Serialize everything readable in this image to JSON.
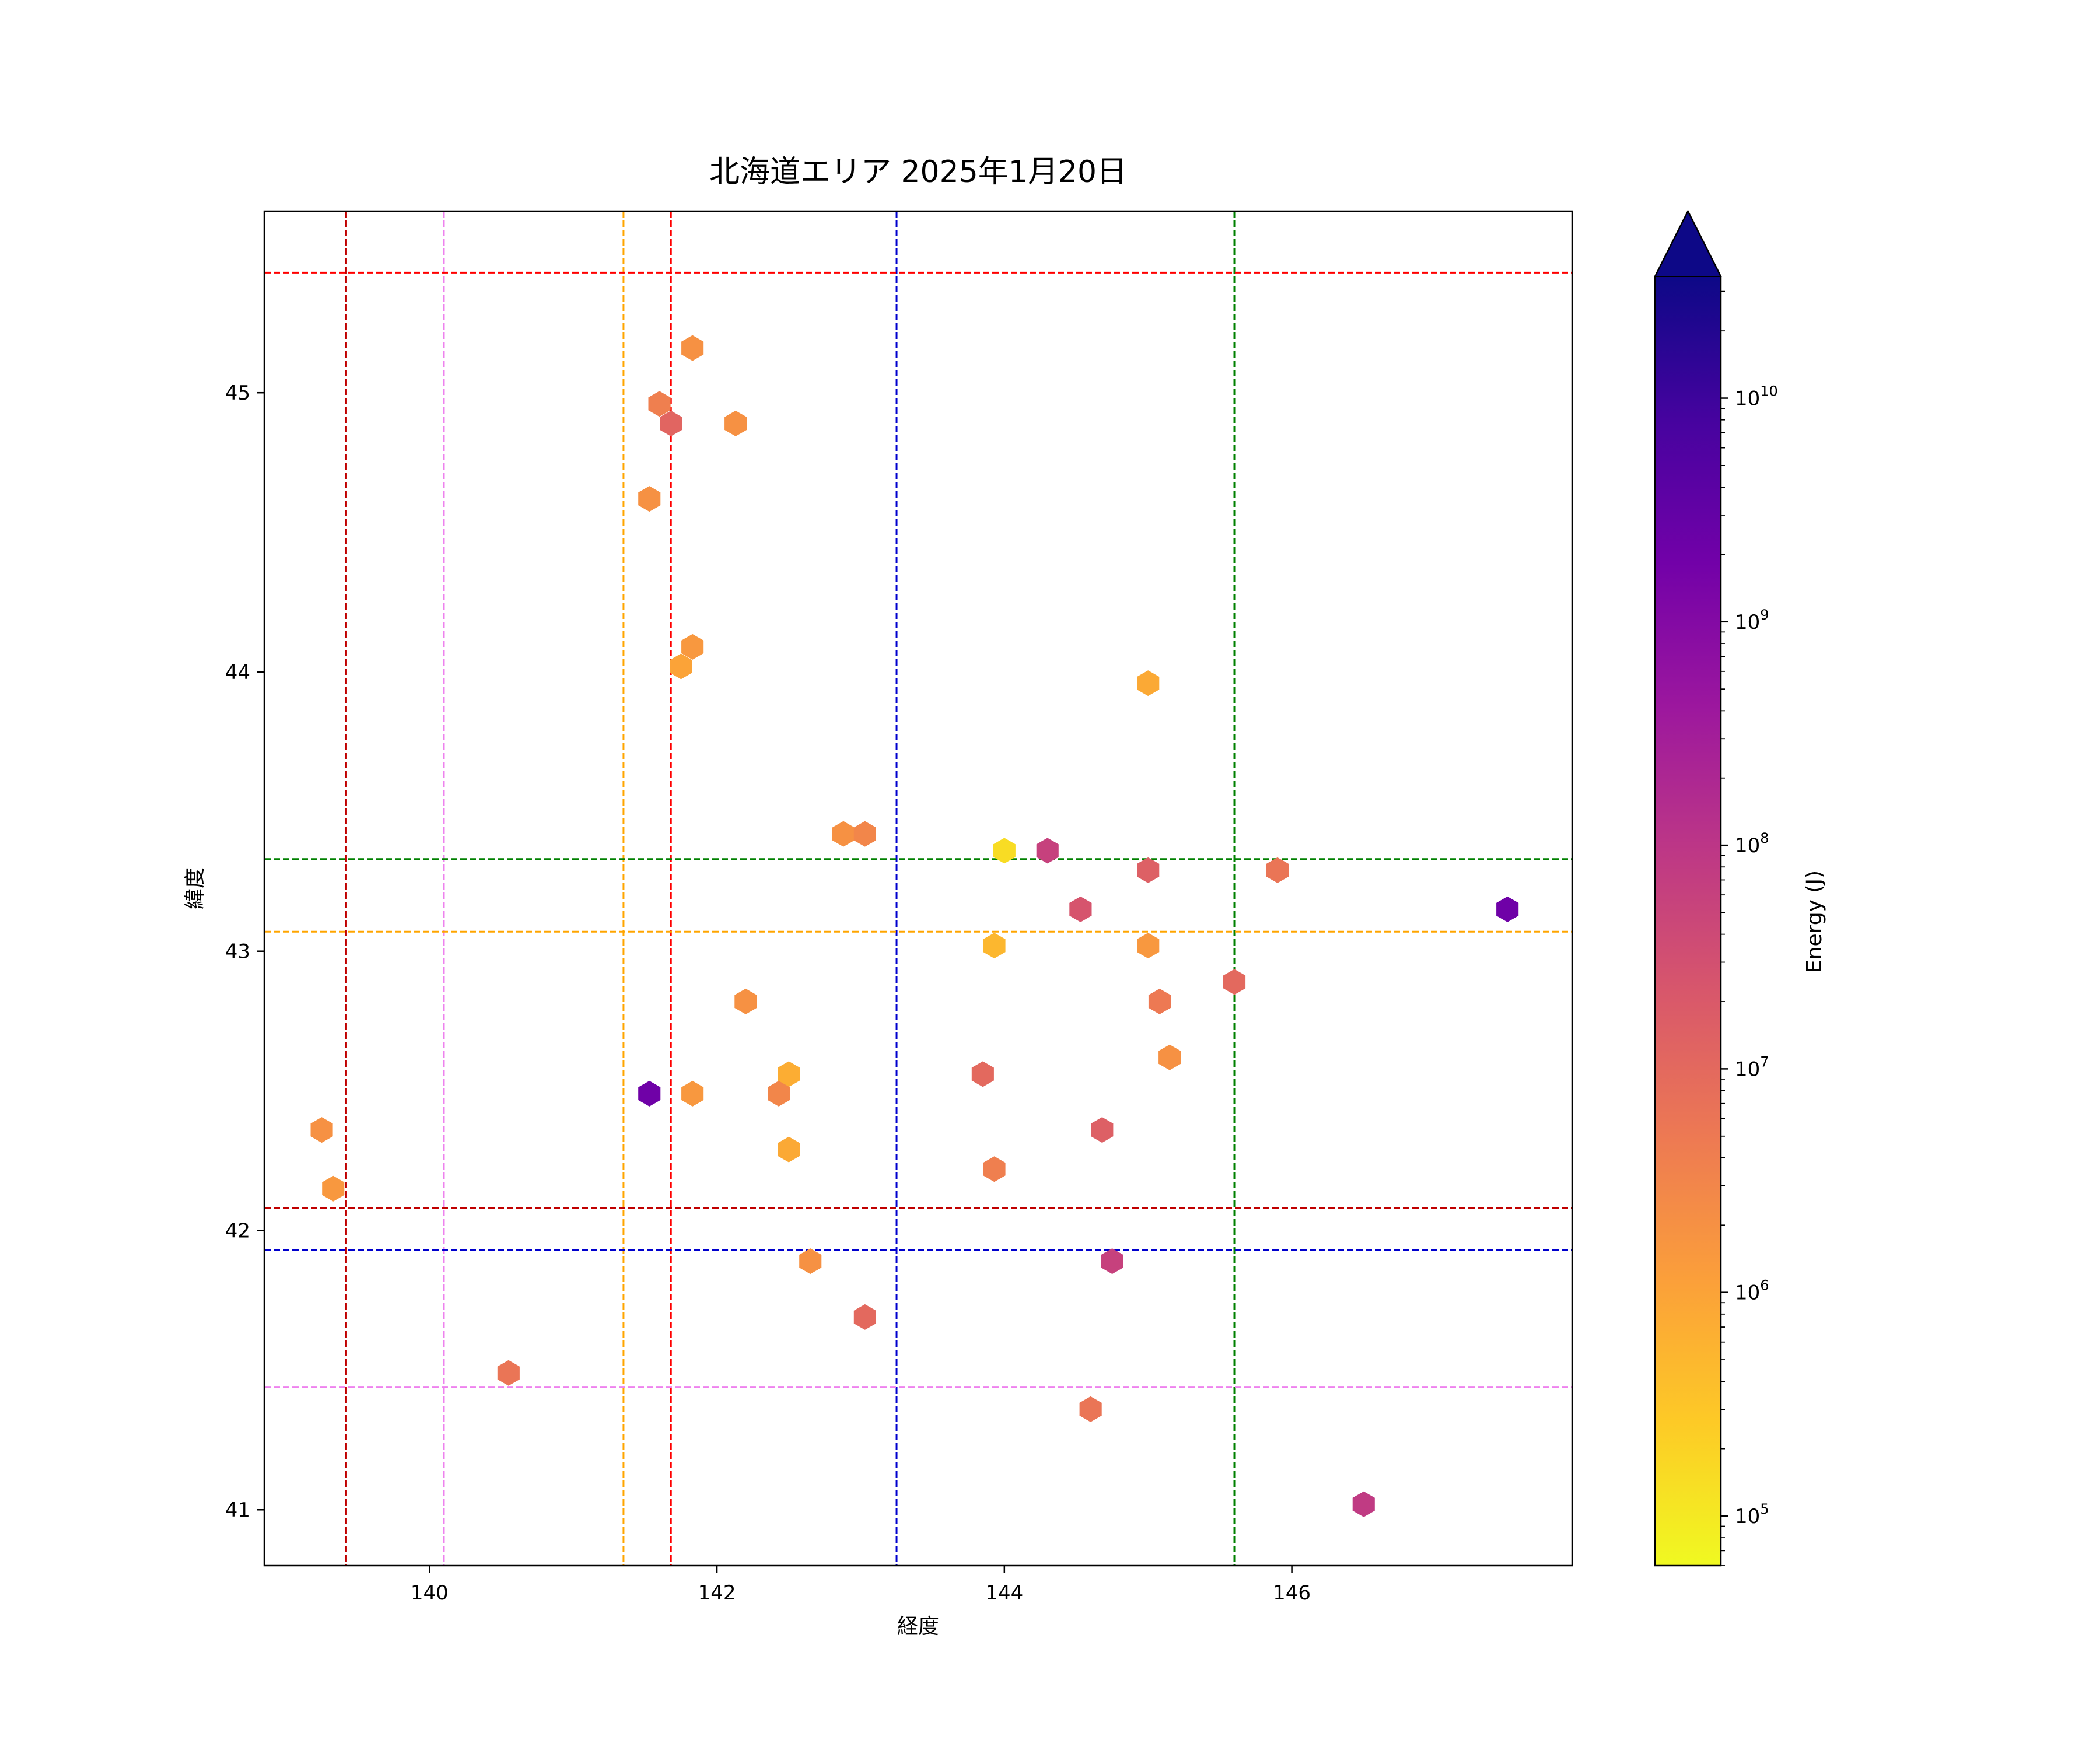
{
  "chart_data": {
    "type": "hexbin",
    "title": "北海道エリア 2025年1月20日",
    "xlabel": "経度",
    "ylabel": "緯度",
    "xlim": [
      138.85,
      147.95
    ],
    "ylim": [
      40.8,
      45.65
    ],
    "x_ticks": [
      140,
      142,
      144,
      146
    ],
    "y_ticks": [
      41,
      42,
      43,
      44,
      45
    ],
    "colorbar": {
      "label": "Energy (J)",
      "scale": "log",
      "range": [
        60000,
        35000000000
      ],
      "extend": "max",
      "colormap": "plasma_r",
      "tick_values": [
        100000,
        1000000,
        10000000,
        100000000,
        1000000000,
        10000000000
      ],
      "tick_labels": [
        {
          "base": "10",
          "exp": "5"
        },
        {
          "base": "10",
          "exp": "6"
        },
        {
          "base": "10",
          "exp": "7"
        },
        {
          "base": "10",
          "exp": "8"
        },
        {
          "base": "10",
          "exp": "9"
        },
        {
          "base": "10",
          "exp": "10"
        }
      ],
      "stops": [
        "#f0f921",
        "#fdca26",
        "#fb9f3a",
        "#ed7953",
        "#d8576b",
        "#bd3786",
        "#9c179e",
        "#7201a8",
        "#46039f",
        "#0d0887"
      ]
    },
    "reference_lines": [
      {
        "orientation": "vertical",
        "value": 139.42,
        "color": "#c00000"
      },
      {
        "orientation": "vertical",
        "value": 140.1,
        "color": "#ee82ee"
      },
      {
        "orientation": "vertical",
        "value": 141.35,
        "color": "#ffa500"
      },
      {
        "orientation": "vertical",
        "value": 141.68,
        "color": "#ff0000"
      },
      {
        "orientation": "vertical",
        "value": 143.25,
        "color": "#0000cd"
      },
      {
        "orientation": "vertical",
        "value": 145.6,
        "color": "#008000"
      },
      {
        "orientation": "horizontal",
        "value": 45.43,
        "color": "#ff0000"
      },
      {
        "orientation": "horizontal",
        "value": 43.33,
        "color": "#008000"
      },
      {
        "orientation": "horizontal",
        "value": 43.07,
        "color": "#ffa500"
      },
      {
        "orientation": "horizontal",
        "value": 42.08,
        "color": "#c00000"
      },
      {
        "orientation": "horizontal",
        "value": 41.93,
        "color": "#0000cd"
      },
      {
        "orientation": "horizontal",
        "value": 41.44,
        "color": "#ee82ee"
      }
    ],
    "points": [
      {
        "x": 141.83,
        "y": 45.16,
        "energy": 2000000
      },
      {
        "x": 141.6,
        "y": 44.96,
        "energy": 4000000
      },
      {
        "x": 141.68,
        "y": 44.89,
        "energy": 12000000
      },
      {
        "x": 142.13,
        "y": 44.89,
        "energy": 2000000
      },
      {
        "x": 141.53,
        "y": 44.62,
        "energy": 2000000
      },
      {
        "x": 141.83,
        "y": 44.09,
        "energy": 1500000
      },
      {
        "x": 141.75,
        "y": 44.02,
        "energy": 1000000
      },
      {
        "x": 145.0,
        "y": 43.96,
        "energy": 800000
      },
      {
        "x": 142.88,
        "y": 43.42,
        "energy": 2000000
      },
      {
        "x": 143.03,
        "y": 43.42,
        "energy": 3000000
      },
      {
        "x": 144.0,
        "y": 43.36,
        "energy": 150000
      },
      {
        "x": 144.3,
        "y": 43.36,
        "energy": 60000000
      },
      {
        "x": 145.0,
        "y": 43.29,
        "energy": 15000000
      },
      {
        "x": 145.9,
        "y": 43.29,
        "energy": 6000000
      },
      {
        "x": 144.53,
        "y": 43.15,
        "energy": 25000000
      },
      {
        "x": 147.5,
        "y": 43.15,
        "energy": 2000000000
      },
      {
        "x": 143.93,
        "y": 43.02,
        "energy": 500000
      },
      {
        "x": 145.0,
        "y": 43.02,
        "energy": 1500000
      },
      {
        "x": 145.6,
        "y": 42.89,
        "energy": 10000000
      },
      {
        "x": 142.2,
        "y": 42.82,
        "energy": 2000000
      },
      {
        "x": 145.08,
        "y": 42.82,
        "energy": 5000000
      },
      {
        "x": 145.15,
        "y": 42.62,
        "energy": 2000000
      },
      {
        "x": 142.5,
        "y": 42.56,
        "energy": 700000
      },
      {
        "x": 143.85,
        "y": 42.56,
        "energy": 10000000
      },
      {
        "x": 141.53,
        "y": 42.49,
        "energy": 2000000000
      },
      {
        "x": 141.83,
        "y": 42.49,
        "energy": 1500000
      },
      {
        "x": 142.43,
        "y": 42.49,
        "energy": 3000000
      },
      {
        "x": 139.25,
        "y": 42.36,
        "energy": 2000000
      },
      {
        "x": 144.68,
        "y": 42.36,
        "energy": 15000000
      },
      {
        "x": 142.5,
        "y": 42.29,
        "energy": 800000
      },
      {
        "x": 143.93,
        "y": 42.22,
        "energy": 4000000
      },
      {
        "x": 139.33,
        "y": 42.15,
        "energy": 1500000
      },
      {
        "x": 142.65,
        "y": 41.89,
        "energy": 2000000
      },
      {
        "x": 144.75,
        "y": 41.89,
        "energy": 60000000
      },
      {
        "x": 143.03,
        "y": 41.69,
        "energy": 10000000
      },
      {
        "x": 140.55,
        "y": 41.49,
        "energy": 6000000
      },
      {
        "x": 144.6,
        "y": 41.36,
        "energy": 6000000
      },
      {
        "x": 146.5,
        "y": 41.02,
        "energy": 80000000
      }
    ]
  }
}
